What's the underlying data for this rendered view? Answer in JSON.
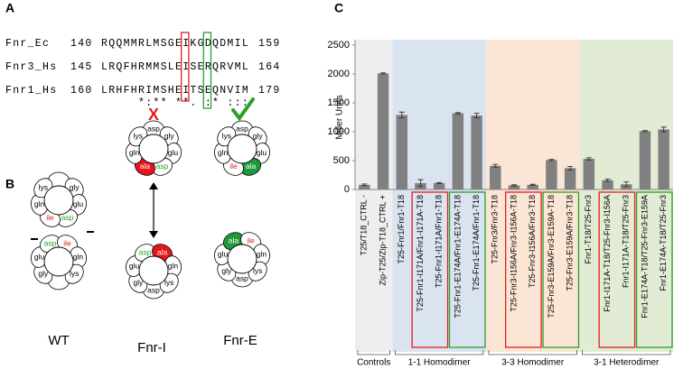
{
  "panel_labels": [
    "A",
    "B",
    "C"
  ],
  "panel_a": {
    "rows": [
      {
        "name": "Fnr_Ec",
        "start": "140",
        "sequence": "RQQMMRLMSGEIKGDQDMIL",
        "end": "159"
      },
      {
        "name": "Fnr3_Hs",
        "start": "145",
        "sequence": "LRQFHRMMSLEISERQRVML",
        "end": "164"
      },
      {
        "name": "Fnr1_Hs",
        "start": "160",
        "sequence": "LRHFHRIMSHEITSEQNVIM",
        "end": "179"
      }
    ],
    "consensus": "     *:** **. :* :::"
  },
  "panel_b": {
    "wheels": [
      {
        "label": "WT",
        "top": [
          null,
          "gly",
          "glu",
          "asp",
          "ile",
          "gln",
          "lys"
        ],
        "bottom": [
          null,
          "gly",
          "glu",
          "asp",
          "ile",
          "gln",
          "lys"
        ]
      },
      {
        "label": "Fnr-I",
        "mark": "X",
        "top": [
          "asp",
          "gly",
          "glu",
          "asp",
          "ala",
          "gln",
          "lys"
        ],
        "bottom": [
          "asp",
          "gly",
          "glu",
          "asp",
          "ala",
          "gln",
          "lys"
        ]
      },
      {
        "label": "Fnr-E",
        "top": [
          "asp",
          "gly",
          "glu",
          "ala",
          "ile",
          "gln",
          "lys"
        ],
        "bottom": [
          "asp",
          "gly",
          "glu",
          "ala",
          "ile",
          "gln",
          "lys"
        ]
      }
    ]
  },
  "chart_data": {
    "type": "bar",
    "ylabel": "Miller Units",
    "color": "#808080",
    "categories": [
      "T25/T18_CTRL -",
      "Zip-T25/Zip-T18_CTRL +",
      "T25-Fnr1/Fnr1-T18",
      "T25-Fnr1-I171A/Fnr1-I171A-T18",
      "T25-Fnr1-I171A/Fnr1-T18",
      "T25-Fnr1-E174A/Fnr1-E174A-T18",
      "T25-Fnr1-E174A/Fnr1-T18",
      "T25-Fnr3/Fnr3-T18",
      "T25-Fnr3-I156A/Fnr3-I156A-T18",
      "T25-Fnr3-I156A/Fnr3-T18",
      "T25-Fnr3-E159A/Fnr3-E159A-T18",
      "T25-Fnr3-E159A/Fnr3-T18",
      "Fnr1-T18/T25-Fnr3",
      "Fnr1-I171A-T18/T25-Fnr3-I156A",
      "Fnr1-I171A-T18/T25-Fnr3",
      "Fnr1-E174A-T18/T25-Fnr3-E159A",
      "Fnr1-E174A-T18/T25-Fnr3"
    ],
    "values": [
      80,
      2010,
      1290,
      110,
      110,
      1320,
      1280,
      410,
      70,
      80,
      510,
      370,
      530,
      160,
      90,
      1010,
      1040
    ],
    "errors": [
      15,
      10,
      50,
      60,
      10,
      10,
      40,
      25,
      10,
      10,
      10,
      30,
      20,
      20,
      40,
      10,
      40
    ],
    "ylim": [
      0,
      2500
    ],
    "yticks": [
      0,
      500,
      1000,
      1500,
      2000,
      2500
    ],
    "groups": [
      {
        "label": "Controls",
        "count": 2,
        "color": "#eeeeee"
      },
      {
        "label": "1-1 Homodimer",
        "count": 5,
        "color": "#dae3f0"
      },
      {
        "label": "3-3 Homodimer",
        "count": 5,
        "color": "#fbe5d5"
      },
      {
        "label": "3-1 Heterodimer",
        "count": 5,
        "color": "#e2ecd4"
      }
    ]
  }
}
